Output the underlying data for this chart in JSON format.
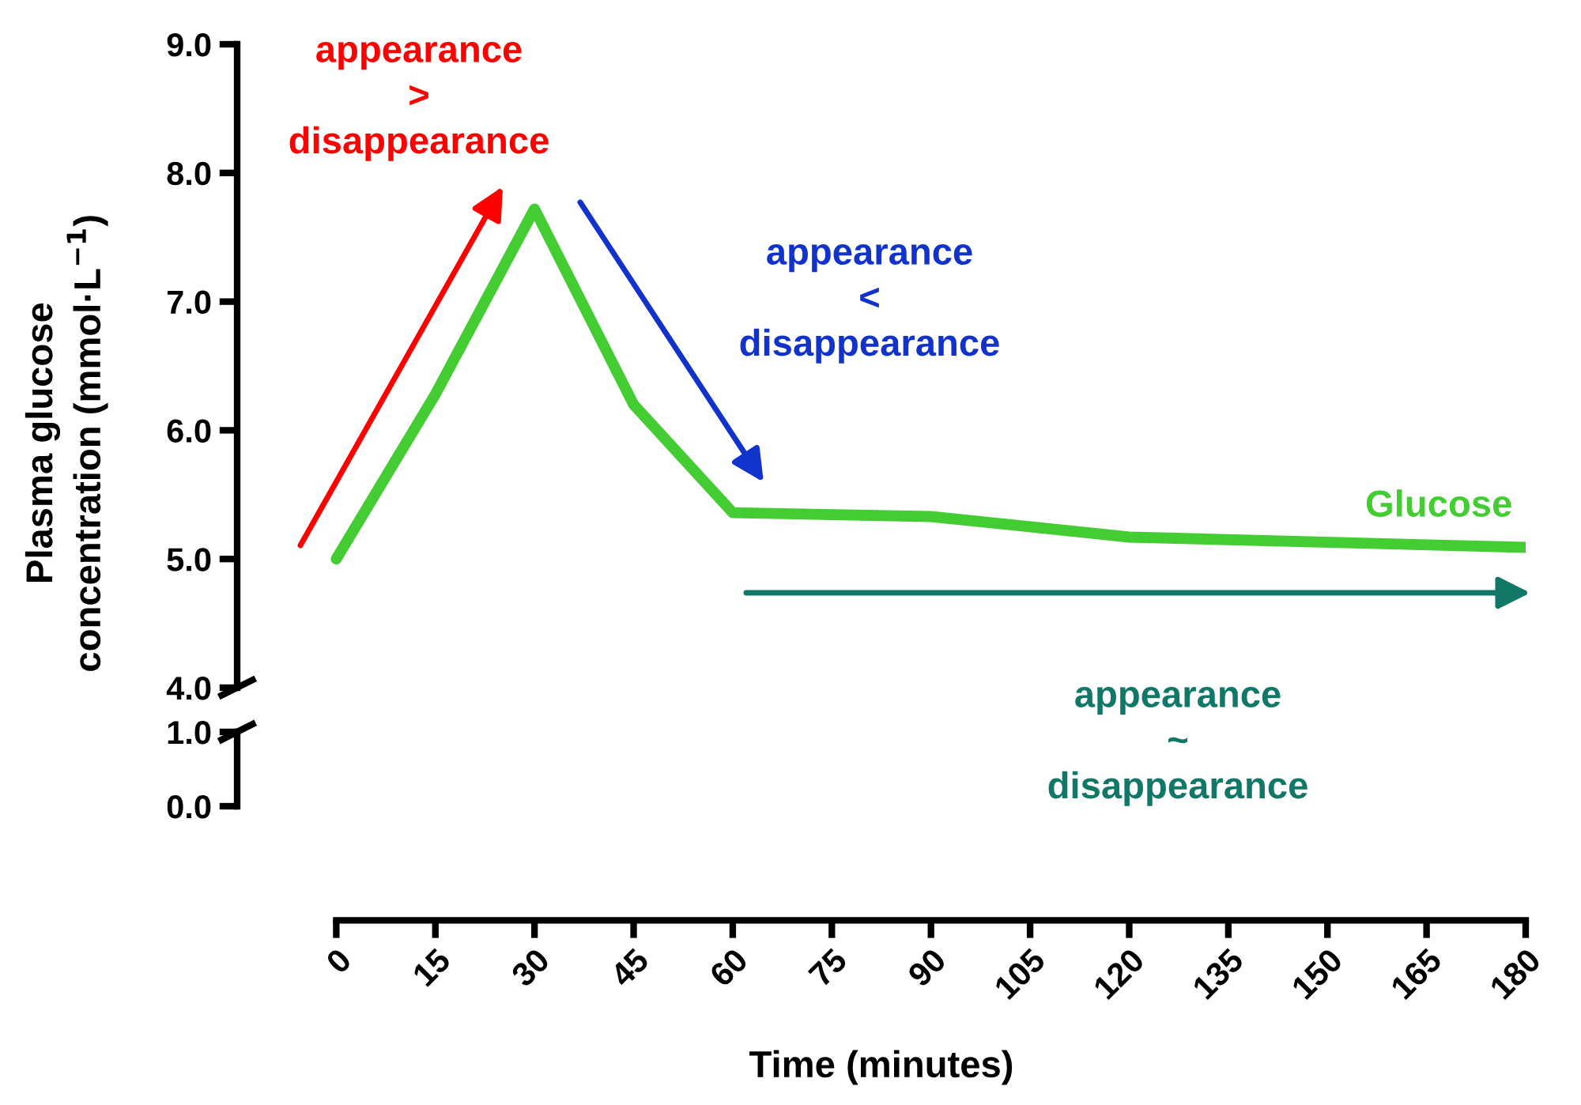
{
  "chart_data": [
    {
      "type": "line",
      "ylabel": "Plasma glucose\nconcentration (mmol·L$^{−1}$)",
      "x": [
        0,
        15,
        30,
        45,
        60,
        90,
        120,
        180
      ],
      "series": [
        {
          "name": "Glucose",
          "color": "#44cc33",
          "values": [
            5.0,
            6.28,
            7.72,
            6.2,
            5.36,
            5.33,
            5.17,
            5.09
          ]
        }
      ],
      "xlim": [
        -15,
        180
      ],
      "ylim": [
        4,
        9
      ],
      "yticks": [
        {
          "value": 4,
          "label": "4.0"
        },
        {
          "value": 5,
          "label": "5.0"
        },
        {
          "value": 6,
          "label": "6.0"
        },
        {
          "value": 7,
          "label": "7.0"
        },
        {
          "value": 8,
          "label": "8.0"
        },
        {
          "value": 9,
          "label": "9.0"
        }
      ],
      "tick_labels": "y",
      "annotations": [
        "appearance\n>\ndisappearance",
        "appearance\n<\ndisappearance",
        "appearance\n~\ndisappearance"
      ]
    },
    {
      "type": "line",
      "xlabel": "Time (minutes)",
      "xlim": [
        -15,
        180
      ],
      "ylim": [
        0,
        1
      ],
      "yticks": [
        {
          "value": 0,
          "label": "0.0"
        },
        {
          "value": 1,
          "label": "1.0"
        }
      ],
      "xticks": [
        0,
        15,
        30,
        45,
        60,
        75,
        90,
        105,
        120,
        135,
        150,
        165,
        180
      ]
    }
  ]
}
